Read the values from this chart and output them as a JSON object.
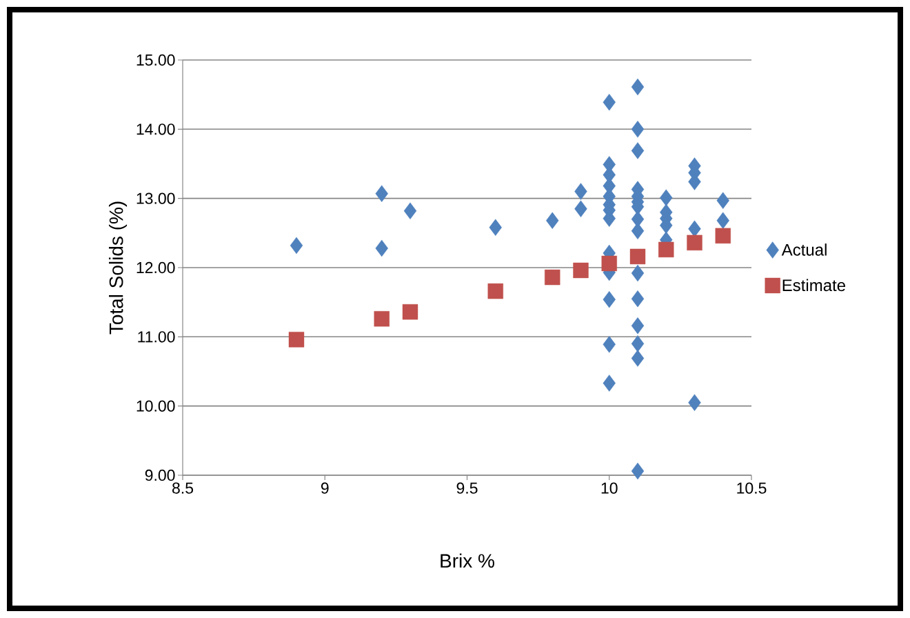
{
  "chart_data": {
    "type": "scatter",
    "xlabel": "Brix %",
    "ylabel": "Total Solids (%)",
    "xlim": [
      8.5,
      10.5
    ],
    "xticks": [
      8.5,
      9,
      9.5,
      10,
      10.5
    ],
    "ylim": [
      9,
      15
    ],
    "yticks": [
      {
        "value": 9,
        "label": "9.00"
      },
      {
        "value": 10,
        "label": "10.00"
      },
      {
        "value": 11,
        "label": "11.00"
      },
      {
        "value": 12,
        "label": "12.00"
      },
      {
        "value": 13,
        "label": "13.00"
      },
      {
        "value": 14,
        "label": "14.00"
      },
      {
        "value": 15,
        "label": "15.00"
      }
    ],
    "grid": "y",
    "legend": "right",
    "series": [
      {
        "name": "Actual",
        "color": "#4f81bd",
        "marker": "diamond",
        "x": [
          8.9,
          9.2,
          9.2,
          9.3,
          9.6,
          9.8,
          9.9,
          9.9,
          10.0,
          10.0,
          10.0,
          10.0,
          10.0,
          10.0,
          10.0,
          10.0,
          10.0,
          10.0,
          10.0,
          10.0,
          10.0,
          10.1,
          10.1,
          10.1,
          10.1,
          10.1,
          10.1,
          10.1,
          10.1,
          10.1,
          10.1,
          10.1,
          10.1,
          10.1,
          10.1,
          10.1,
          10.2,
          10.2,
          10.2,
          10.2,
          10.2,
          10.3,
          10.3,
          10.3,
          10.3,
          10.3,
          10.4,
          10.4
        ],
        "values": [
          12.32,
          13.07,
          12.28,
          12.82,
          12.58,
          12.68,
          13.1,
          12.85,
          14.39,
          13.49,
          13.34,
          13.18,
          13.03,
          12.91,
          12.83,
          12.71,
          12.21,
          11.93,
          11.54,
          10.89,
          10.33,
          14.61,
          14.0,
          13.69,
          13.13,
          13.03,
          12.95,
          12.88,
          12.7,
          12.53,
          11.92,
          11.55,
          11.16,
          10.9,
          10.69,
          9.06,
          13.01,
          12.8,
          12.71,
          12.61,
          12.4,
          13.47,
          13.37,
          13.24,
          12.56,
          10.05,
          12.97,
          12.68
        ]
      },
      {
        "name": "Estimate",
        "color": "#c0504d",
        "marker": "square",
        "x": [
          8.9,
          9.2,
          9.3,
          9.6,
          9.8,
          9.9,
          10.0,
          10.1,
          10.2,
          10.3,
          10.4
        ],
        "values": [
          10.96,
          11.26,
          11.36,
          11.66,
          11.86,
          11.96,
          12.06,
          12.16,
          12.26,
          12.36,
          12.46
        ]
      }
    ]
  }
}
